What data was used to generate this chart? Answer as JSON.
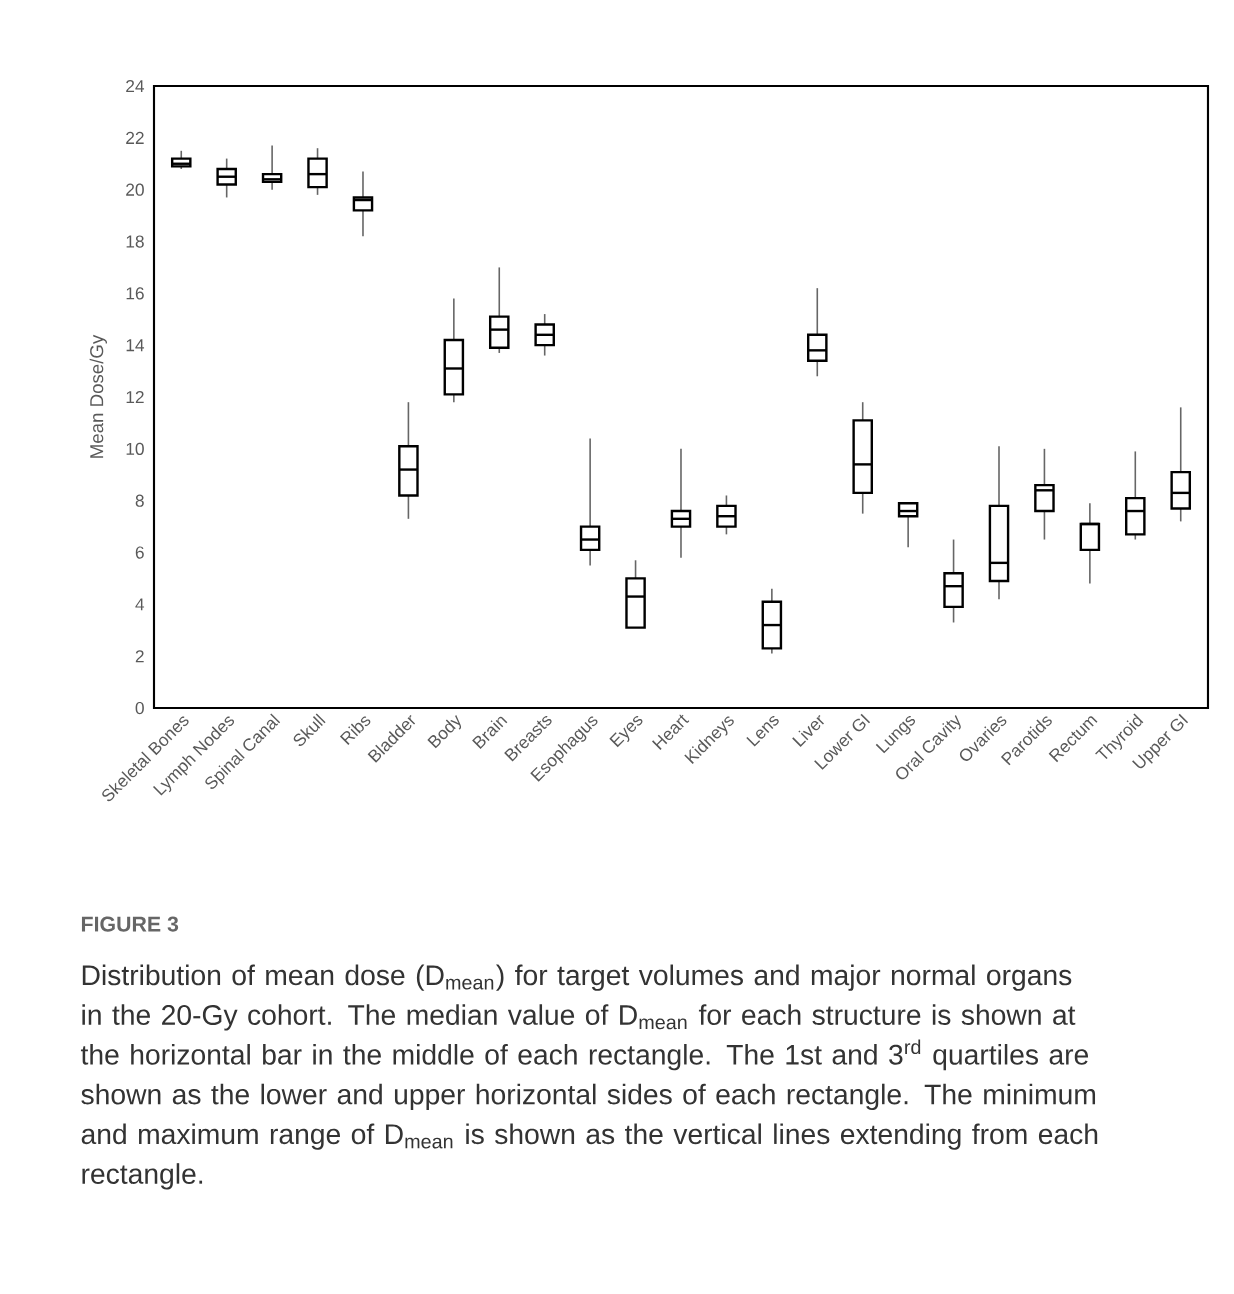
{
  "chart_data": {
    "type": "box",
    "ylabel": "Mean Dose/Gy",
    "categories": [
      "Skeletal Bones",
      "Lymph Nodes",
      "Spinal Canal",
      "Skull",
      "Ribs",
      "Bladder",
      "Body",
      "Brain",
      "Breasts",
      "Esophagus",
      "Eyes",
      "Heart",
      "Kidneys",
      "Lens",
      "Liver",
      "Lower GI",
      "Lungs",
      "Oral Cavity",
      "Ovaries",
      "Parotids",
      "Rectum",
      "Thyroid",
      "Upper GI"
    ],
    "boxes": [
      {
        "low": 20.8,
        "q1": 20.9,
        "median": 21.0,
        "q3": 21.2,
        "high": 21.5
      },
      {
        "low": 19.7,
        "q1": 20.2,
        "median": 20.5,
        "q3": 20.8,
        "high": 21.2
      },
      {
        "low": 20.0,
        "q1": 20.3,
        "median": 20.4,
        "q3": 20.6,
        "high": 21.7
      },
      {
        "low": 19.8,
        "q1": 20.1,
        "median": 20.6,
        "q3": 21.2,
        "high": 21.6
      },
      {
        "low": 18.2,
        "q1": 19.2,
        "median": 19.6,
        "q3": 19.7,
        "high": 20.7
      },
      {
        "low": 7.3,
        "q1": 8.2,
        "median": 9.2,
        "q3": 10.1,
        "high": 11.8
      },
      {
        "low": 11.8,
        "q1": 12.1,
        "median": 13.1,
        "q3": 14.2,
        "high": 15.8
      },
      {
        "low": 13.7,
        "q1": 13.9,
        "median": 14.6,
        "q3": 15.1,
        "high": 17.0
      },
      {
        "low": 13.6,
        "q1": 14.0,
        "median": 14.4,
        "q3": 14.8,
        "high": 15.2
      },
      {
        "low": 5.5,
        "q1": 6.1,
        "median": 6.5,
        "q3": 7.0,
        "high": 10.4
      },
      {
        "low": 3.1,
        "q1": 3.1,
        "median": 4.3,
        "q3": 5.0,
        "high": 5.7
      },
      {
        "low": 5.8,
        "q1": 7.0,
        "median": 7.3,
        "q3": 7.6,
        "high": 10.0
      },
      {
        "low": 6.7,
        "q1": 7.0,
        "median": 7.4,
        "q3": 7.8,
        "high": 8.2
      },
      {
        "low": 2.1,
        "q1": 2.3,
        "median": 3.2,
        "q3": 4.1,
        "high": 4.6
      },
      {
        "low": 12.8,
        "q1": 13.4,
        "median": 13.8,
        "q3": 14.4,
        "high": 16.2
      },
      {
        "low": 7.5,
        "q1": 8.3,
        "median": 9.4,
        "q3": 11.1,
        "high": 11.8
      },
      {
        "low": 6.2,
        "q1": 7.4,
        "median": 7.6,
        "q3": 7.9,
        "high": 7.9
      },
      {
        "low": 3.3,
        "q1": 3.9,
        "median": 4.7,
        "q3": 5.2,
        "high": 6.5
      },
      {
        "low": 4.2,
        "q1": 4.9,
        "median": 5.6,
        "q3": 7.8,
        "high": 10.1
      },
      {
        "low": 6.5,
        "q1": 7.6,
        "median": 8.4,
        "q3": 8.6,
        "high": 10.0
      },
      {
        "low": 4.8,
        "q1": 6.1,
        "median": 7.1,
        "q3": 7.1,
        "high": 7.9
      },
      {
        "low": 6.5,
        "q1": 6.7,
        "median": 7.6,
        "q3": 8.1,
        "high": 9.9
      },
      {
        "low": 7.2,
        "q1": 7.7,
        "median": 8.3,
        "q3": 9.1,
        "high": 11.6
      }
    ],
    "ylim": [
      0,
      24
    ],
    "yticks": [
      0,
      2,
      4,
      6,
      8,
      10,
      12,
      14,
      16,
      18,
      20,
      22,
      24
    ],
    "annotations": [
      "FIGURE 3",
      "Distribution of mean dose (D$_{mean}$) for target volumes and major normal organs in the 20-Gy cohort. The median value of D$_{mean}$ for each structure is shown at the horizontal bar in the middle of each rectangle. The 1st and 3$^{rd}$ quartiles are shown as the lower and upper horizontal sides of each rectangle. The minimum and maximum range of D$_{mean}$ is shown as the vertical lines extending from each rectangle."
    ]
  }
}
